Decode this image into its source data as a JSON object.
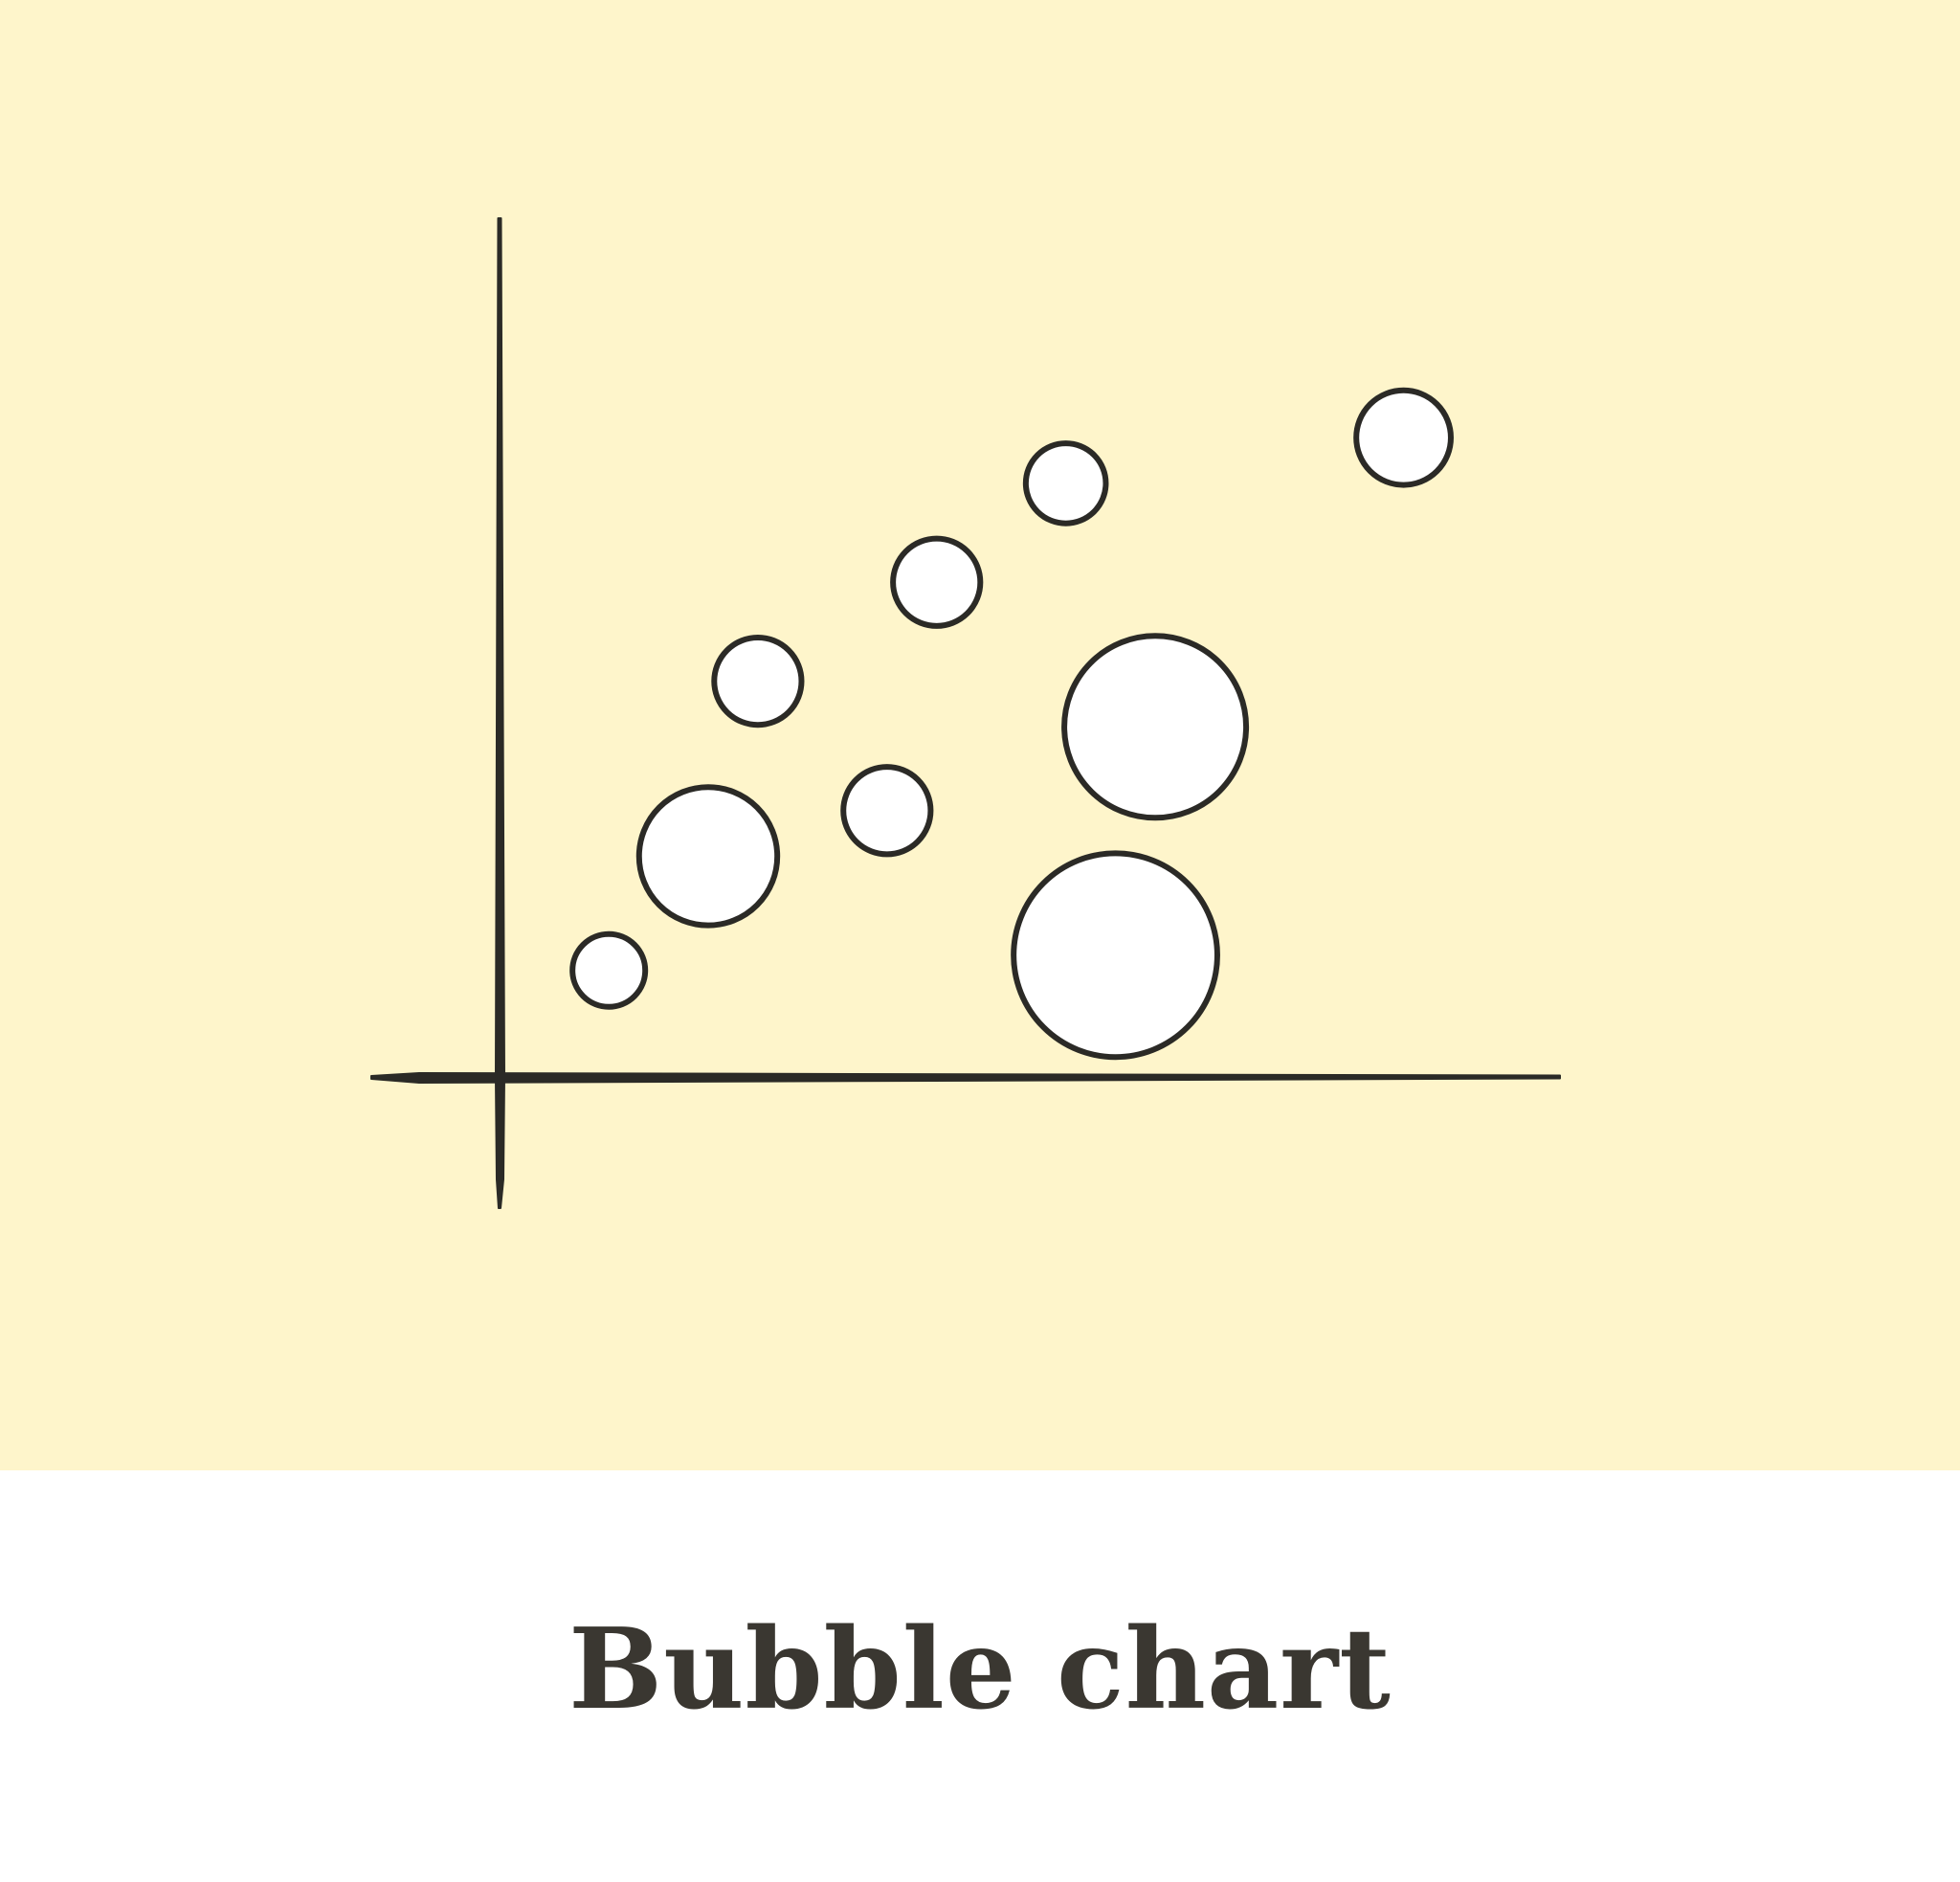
{
  "caption": "Bubble chart",
  "colors": {
    "panel_background": "#fef5cb",
    "ink": "#2b2a26",
    "bubble_fill": "#ffffff",
    "caption_text": "#3a3731"
  },
  "chart_data": {
    "type": "scatter",
    "variant": "bubble",
    "title": "",
    "xlabel": "",
    "ylabel": "",
    "ticks": "none",
    "grid": false,
    "legend": "none",
    "xlim": [
      0,
      10
    ],
    "ylim": [
      0,
      10
    ],
    "points": [
      {
        "x": 1.1,
        "y": 1.4,
        "size": 1.0
      },
      {
        "x": 2.1,
        "y": 2.9,
        "size": 1.9
      },
      {
        "x": 2.6,
        "y": 5.2,
        "size": 1.2
      },
      {
        "x": 3.9,
        "y": 3.5,
        "size": 1.2
      },
      {
        "x": 4.4,
        "y": 6.5,
        "size": 1.2
      },
      {
        "x": 5.7,
        "y": 7.8,
        "size": 1.1
      },
      {
        "x": 6.2,
        "y": 1.6,
        "size": 2.8
      },
      {
        "x": 6.6,
        "y": 4.6,
        "size": 2.5
      },
      {
        "x": 9.1,
        "y": 8.4,
        "size": 1.3
      }
    ]
  }
}
